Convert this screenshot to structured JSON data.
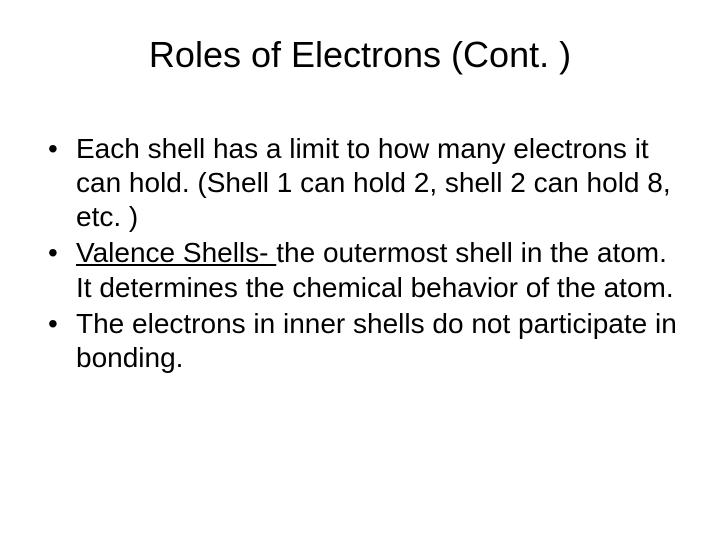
{
  "background_color": "#ffffff",
  "text_color": "#000000",
  "title": {
    "text": "Roles of Electrons (Cont. )",
    "fontsize": 36,
    "align": "center"
  },
  "body_fontsize": 28,
  "bullets": [
    {
      "plain": "Each shell has a limit to how many electrons it can hold. (Shell 1 can hold 2, shell 2 can hold 8, etc. )"
    },
    {
      "lead_underlined": "Valence Shells- ",
      "rest": "the outermost shell in the atom. It determines the chemical behavior of the atom."
    },
    {
      "plain": "The electrons in inner shells do not participate in bonding."
    }
  ]
}
